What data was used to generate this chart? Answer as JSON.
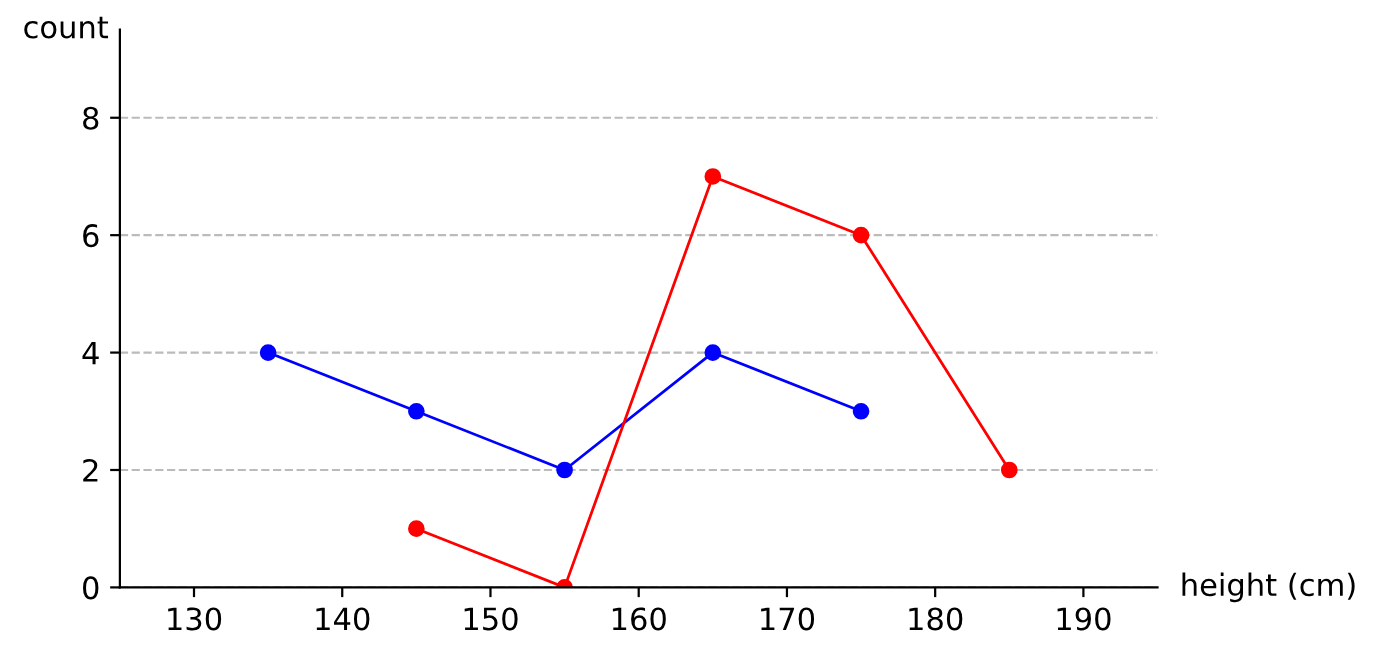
{
  "chart_data": {
    "type": "line",
    "xlabel": "height (cm)",
    "ylabel": "count",
    "xlim": [
      125,
      195
    ],
    "xticks": [
      130,
      140,
      150,
      160,
      170,
      180,
      190
    ],
    "ylim": [
      0,
      9.5
    ],
    "yticks": [
      0,
      2,
      4,
      6,
      8
    ],
    "grid": "y",
    "marker": "circle",
    "line_style": "solid",
    "series": [
      {
        "color": "#0000ff",
        "x": [
          135,
          145,
          155,
          165,
          175
        ],
        "values": [
          4,
          3,
          2,
          4,
          3
        ]
      },
      {
        "color": "#ff0000",
        "x": [
          145,
          155,
          165,
          175,
          185
        ],
        "values": [
          1,
          0,
          7,
          6,
          2
        ]
      }
    ]
  }
}
